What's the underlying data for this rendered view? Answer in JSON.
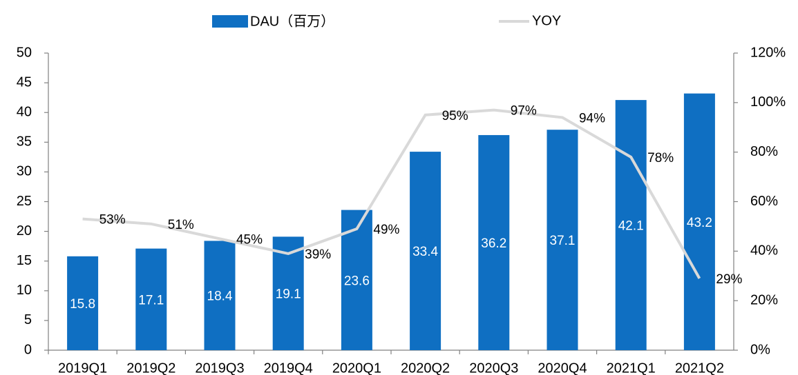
{
  "chart_data": {
    "type": "bar",
    "legend": "top",
    "categories": [
      "2019Q1",
      "2019Q2",
      "2019Q3",
      "2019Q4",
      "2020Q1",
      "2020Q2",
      "2020Q3",
      "2020Q4",
      "2021Q1",
      "2021Q2"
    ],
    "series": [
      {
        "name": "DAU（百万）",
        "type": "bar",
        "color": "#0f6fc2",
        "values": [
          15.8,
          17.1,
          18.4,
          19.1,
          23.6,
          33.4,
          36.2,
          37.1,
          42.1,
          43.2
        ]
      },
      {
        "name": "YOY",
        "type": "line",
        "axis": "y2",
        "color": "#d9d9d9",
        "values": [
          53,
          51,
          45,
          39,
          49,
          95,
          97,
          94,
          78,
          29
        ],
        "value_labels": [
          "53%",
          "51%",
          "45%",
          "39%",
          "49%",
          "95%",
          "97%",
          "94%",
          "78%",
          "29%"
        ]
      }
    ],
    "ylim": [
      0,
      50
    ],
    "yticks": [
      0,
      5,
      10,
      15,
      20,
      25,
      30,
      35,
      40,
      45,
      50
    ],
    "y2lim": [
      0,
      120
    ],
    "y2ticks": [
      {
        "value": 0,
        "label": "0%"
      },
      {
        "value": 20,
        "label": "20%"
      },
      {
        "value": 40,
        "label": "40%"
      },
      {
        "value": 60,
        "label": "60%"
      },
      {
        "value": 80,
        "label": "80%"
      },
      {
        "value": 100,
        "label": "100%"
      },
      {
        "value": 120,
        "label": "120%"
      }
    ],
    "grid": false
  }
}
